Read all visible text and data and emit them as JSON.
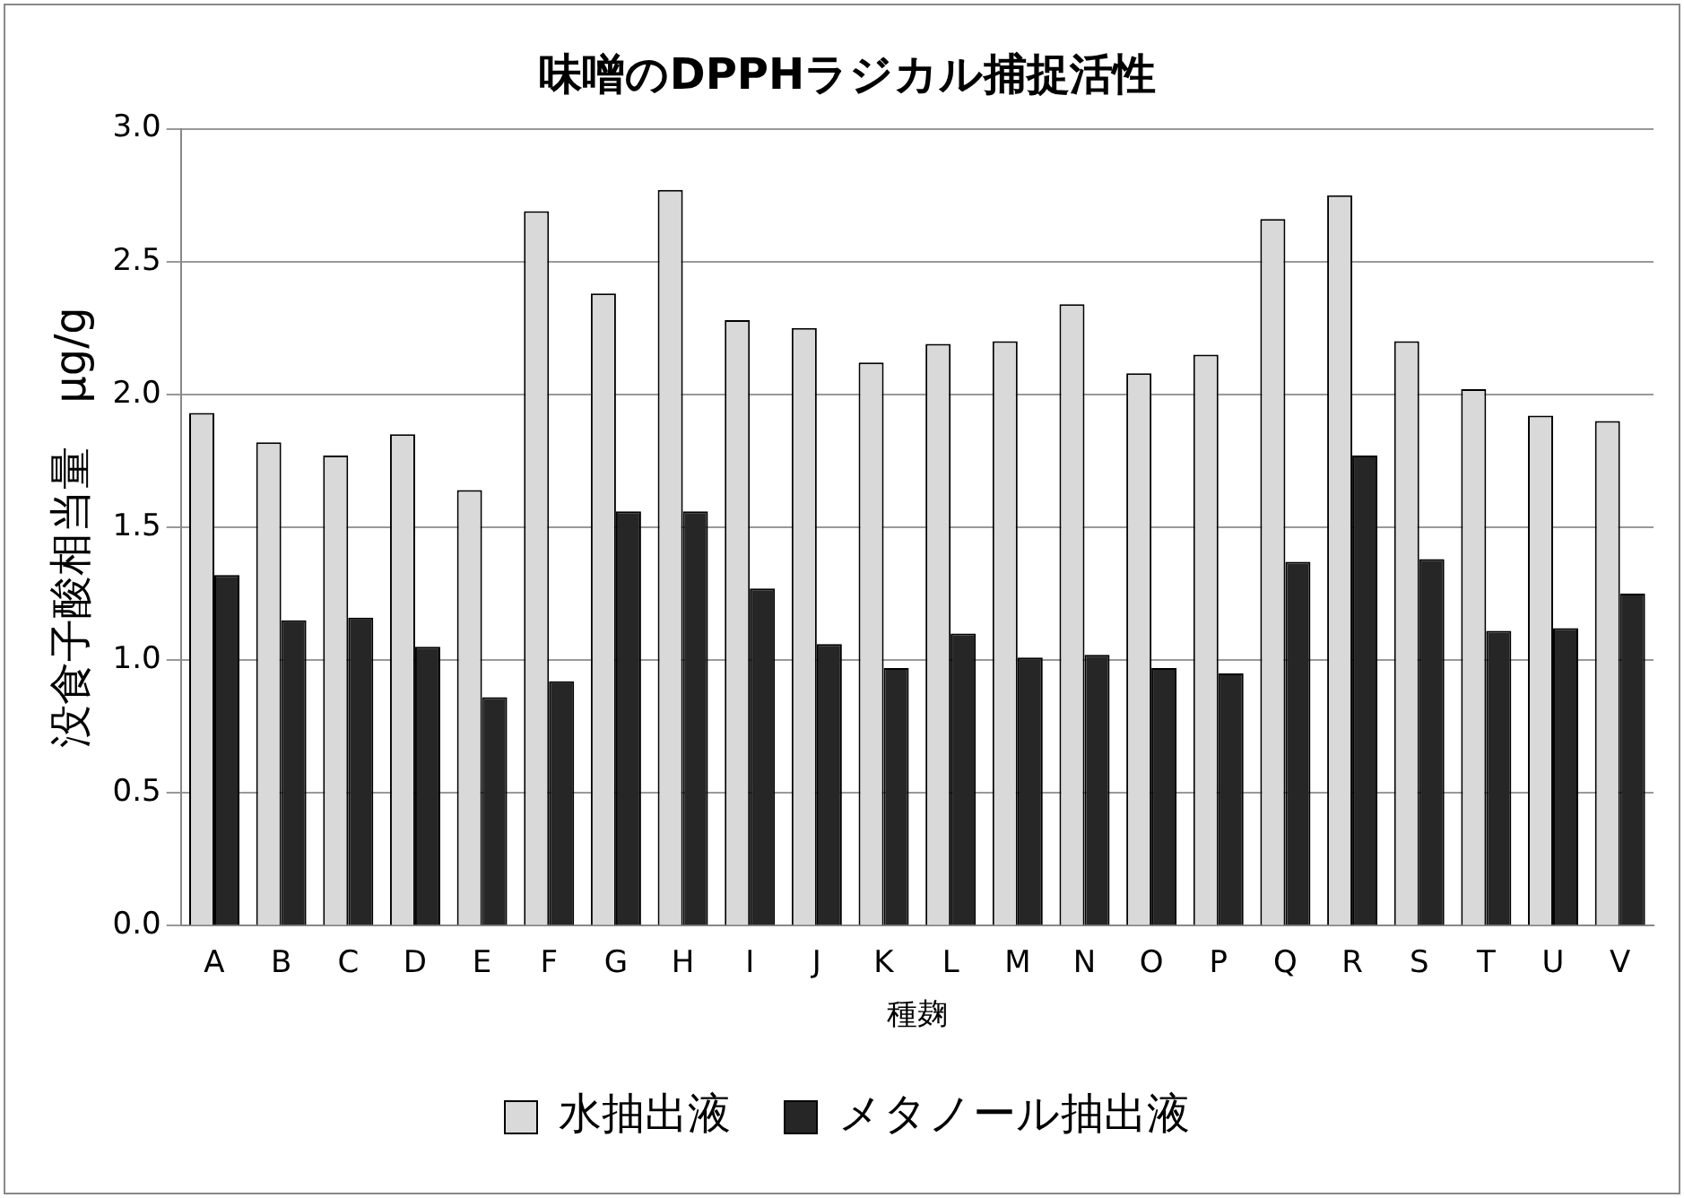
{
  "chart_data": {
    "type": "bar",
    "title": "味噌のDPPHラジカル捕捉活性",
    "xlabel": "種麹",
    "ylabel": "没食子酸相当量　μg/g",
    "categories": [
      "A",
      "B",
      "C",
      "D",
      "E",
      "F",
      "G",
      "H",
      "I",
      "J",
      "K",
      "L",
      "M",
      "N",
      "O",
      "P",
      "Q",
      "R",
      "S",
      "T",
      "U",
      "V"
    ],
    "series": [
      {
        "name": "水抽出液",
        "color": "#d9d9d9",
        "values": [
          1.93,
          1.82,
          1.77,
          1.85,
          1.64,
          2.69,
          2.38,
          2.77,
          2.28,
          2.25,
          2.12,
          2.19,
          2.2,
          2.34,
          2.08,
          2.15,
          2.66,
          2.75,
          2.2,
          2.02,
          1.92,
          1.9
        ]
      },
      {
        "name": "メタノール抽出液",
        "color": "#262626",
        "values": [
          1.32,
          1.15,
          1.16,
          1.05,
          0.86,
          0.92,
          1.56,
          1.56,
          1.27,
          1.06,
          0.97,
          1.1,
          1.01,
          1.02,
          0.97,
          0.95,
          1.37,
          1.77,
          1.38,
          1.11,
          1.12,
          1.25
        ]
      }
    ],
    "ylim": [
      0,
      3
    ],
    "yticks": [
      {
        "value": 0,
        "label": "0.0"
      },
      {
        "value": 0.5,
        "label": "0.5"
      },
      {
        "value": 1,
        "label": "1.0"
      },
      {
        "value": 1.5,
        "label": "1.5"
      },
      {
        "value": 2,
        "label": "2.0"
      },
      {
        "value": 2.5,
        "label": "2.5"
      },
      {
        "value": 3,
        "label": "3.0"
      }
    ],
    "grid": "y",
    "legend": "bottom"
  }
}
